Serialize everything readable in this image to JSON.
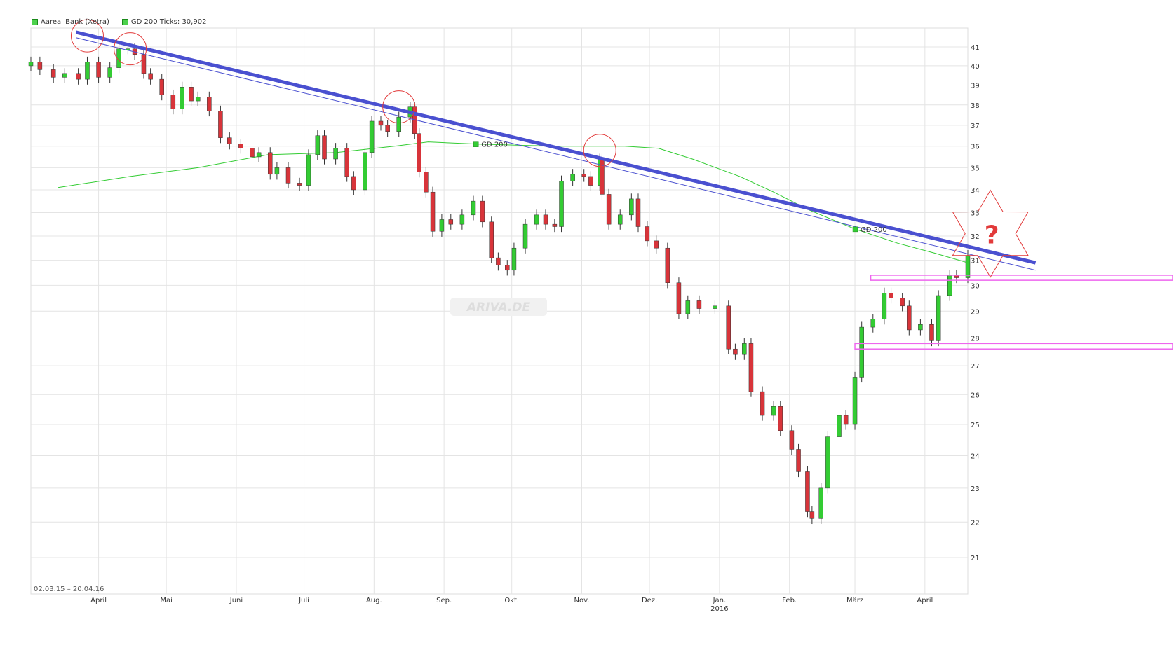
{
  "legend": {
    "instrument": "Aareal Bank (Xetra)",
    "indicator": "GD 200 Ticks: 30,902"
  },
  "date_range": "02.03.15 – 20.04.16",
  "watermark": "ARIVA.DE",
  "ma_labels": [
    "GD 200",
    "GD 200"
  ],
  "annotation_mark": "?",
  "colors": {
    "up": "#33cc33",
    "down": "#d8343a",
    "ma": "#33cc33",
    "trendline": "#4a50d0",
    "support": "#ee66ee",
    "circle": "#e23a3a",
    "star": "#e23a3a",
    "grid": "#e4e4e4"
  },
  "chart_data": {
    "type": "candlestick",
    "title": "",
    "x_axis": {
      "range": [
        "2015-03-02",
        "2016-04-20"
      ],
      "tick_labels": [
        {
          "date": "2015-04-01",
          "label": "April"
        },
        {
          "date": "2015-05-01",
          "label": "Mai"
        },
        {
          "date": "2015-06-01",
          "label": "Juni"
        },
        {
          "date": "2015-07-01",
          "label": "Juli"
        },
        {
          "date": "2015-08-01",
          "label": "Aug."
        },
        {
          "date": "2015-09-01",
          "label": "Sep."
        },
        {
          "date": "2015-10-01",
          "label": "Okt."
        },
        {
          "date": "2015-11-01",
          "label": "Nov."
        },
        {
          "date": "2015-12-01",
          "label": "Dez."
        },
        {
          "date": "2016-01-01",
          "label": "Jan.",
          "sublabel": "2016"
        },
        {
          "date": "2016-02-01",
          "label": "Feb."
        },
        {
          "date": "2016-03-01",
          "label": "März"
        },
        {
          "date": "2016-04-01",
          "label": "April"
        }
      ]
    },
    "y_axis": {
      "scale": "log",
      "range": [
        20,
        42
      ],
      "ticks": [
        21,
        22,
        23,
        24,
        25,
        26,
        27,
        28,
        29,
        30,
        31,
        32,
        33,
        34,
        35,
        36,
        37,
        38,
        39,
        40,
        41
      ],
      "side": "right",
      "grid": true
    },
    "series": [
      {
        "name": "Aareal Bank (Xetra)",
        "kind": "daily closing price (approx.)",
        "points": [
          [
            "2015-03-02",
            40.2
          ],
          [
            "2015-03-06",
            39.8
          ],
          [
            "2015-03-12",
            39.4
          ],
          [
            "2015-03-17",
            39.6
          ],
          [
            "2015-03-23",
            39.3
          ],
          [
            "2015-03-27",
            40.2
          ],
          [
            "2015-04-01",
            39.4
          ],
          [
            "2015-04-06",
            39.9
          ],
          [
            "2015-04-10",
            40.9
          ],
          [
            "2015-04-14",
            40.9
          ],
          [
            "2015-04-17",
            40.6
          ],
          [
            "2015-04-21",
            39.6
          ],
          [
            "2015-04-24",
            39.3
          ],
          [
            "2015-04-29",
            38.5
          ],
          [
            "2015-05-04",
            37.8
          ],
          [
            "2015-05-08",
            38.9
          ],
          [
            "2015-05-12",
            38.2
          ],
          [
            "2015-05-15",
            38.4
          ],
          [
            "2015-05-20",
            37.7
          ],
          [
            "2015-05-25",
            36.4
          ],
          [
            "2015-05-29",
            36.1
          ],
          [
            "2015-06-03",
            35.9
          ],
          [
            "2015-06-08",
            35.5
          ],
          [
            "2015-06-11",
            35.7
          ],
          [
            "2015-06-16",
            34.7
          ],
          [
            "2015-06-19",
            35.0
          ],
          [
            "2015-06-24",
            34.3
          ],
          [
            "2015-06-29",
            34.2
          ],
          [
            "2015-07-03",
            35.6
          ],
          [
            "2015-07-07",
            36.5
          ],
          [
            "2015-07-10",
            35.4
          ],
          [
            "2015-07-15",
            35.9
          ],
          [
            "2015-07-20",
            34.6
          ],
          [
            "2015-07-23",
            34.0
          ],
          [
            "2015-07-28",
            35.7
          ],
          [
            "2015-07-31",
            37.2
          ],
          [
            "2015-08-04",
            37.0
          ],
          [
            "2015-08-07",
            36.7
          ],
          [
            "2015-08-12",
            37.4
          ],
          [
            "2015-08-17",
            37.9
          ],
          [
            "2015-08-19",
            36.6
          ],
          [
            "2015-08-21",
            34.8
          ],
          [
            "2015-08-24",
            33.9
          ],
          [
            "2015-08-27",
            32.2
          ],
          [
            "2015-08-31",
            32.7
          ],
          [
            "2015-09-04",
            32.5
          ],
          [
            "2015-09-09",
            32.9
          ],
          [
            "2015-09-14",
            33.5
          ],
          [
            "2015-09-18",
            32.6
          ],
          [
            "2015-09-22",
            31.1
          ],
          [
            "2015-09-25",
            30.8
          ],
          [
            "2015-09-29",
            30.6
          ],
          [
            "2015-10-02",
            31.5
          ],
          [
            "2015-10-07",
            32.5
          ],
          [
            "2015-10-12",
            32.9
          ],
          [
            "2015-10-16",
            32.5
          ],
          [
            "2015-10-20",
            32.4
          ],
          [
            "2015-10-23",
            34.4
          ],
          [
            "2015-10-28",
            34.7
          ],
          [
            "2015-11-02",
            34.6
          ],
          [
            "2015-11-05",
            34.2
          ],
          [
            "2015-11-09",
            35.4
          ],
          [
            "2015-11-10",
            33.8
          ],
          [
            "2015-11-13",
            32.5
          ],
          [
            "2015-11-18",
            32.9
          ],
          [
            "2015-11-23",
            33.6
          ],
          [
            "2015-11-26",
            32.4
          ],
          [
            "2015-11-30",
            31.8
          ],
          [
            "2015-12-04",
            31.5
          ],
          [
            "2015-12-09",
            30.1
          ],
          [
            "2015-12-14",
            28.9
          ],
          [
            "2015-12-18",
            29.4
          ],
          [
            "2015-12-23",
            29.1
          ],
          [
            "2015-12-30",
            29.2
          ],
          [
            "2016-01-05",
            27.6
          ],
          [
            "2016-01-08",
            27.4
          ],
          [
            "2016-01-12",
            27.8
          ],
          [
            "2016-01-15",
            26.1
          ],
          [
            "2016-01-20",
            25.3
          ],
          [
            "2016-01-25",
            25.6
          ],
          [
            "2016-01-28",
            24.8
          ],
          [
            "2016-02-02",
            24.2
          ],
          [
            "2016-02-05",
            23.5
          ],
          [
            "2016-02-09",
            22.3
          ],
          [
            "2016-02-11",
            22.1
          ],
          [
            "2016-02-15",
            23.0
          ],
          [
            "2016-02-18",
            24.6
          ],
          [
            "2016-02-23",
            25.3
          ],
          [
            "2016-02-26",
            25.0
          ],
          [
            "2016-03-01",
            26.6
          ],
          [
            "2016-03-04",
            28.4
          ],
          [
            "2016-03-09",
            28.7
          ],
          [
            "2016-03-14",
            29.7
          ],
          [
            "2016-03-17",
            29.5
          ],
          [
            "2016-03-22",
            29.2
          ],
          [
            "2016-03-25",
            28.3
          ],
          [
            "2016-03-30",
            28.5
          ],
          [
            "2016-04-04",
            27.9
          ],
          [
            "2016-04-07",
            29.6
          ],
          [
            "2016-04-12",
            30.4
          ],
          [
            "2016-04-15",
            30.3
          ],
          [
            "2016-04-20",
            31.2
          ]
        ]
      },
      {
        "name": "GD 200",
        "kind": "200-day moving average",
        "points": [
          [
            "2015-03-14",
            34.1
          ],
          [
            "2015-04-15",
            34.6
          ],
          [
            "2015-05-15",
            35.0
          ],
          [
            "2015-06-15",
            35.6
          ],
          [
            "2015-07-15",
            35.7
          ],
          [
            "2015-08-10",
            36.0
          ],
          [
            "2015-08-25",
            36.2
          ],
          [
            "2015-09-15",
            36.1
          ],
          [
            "2015-10-20",
            36.0
          ],
          [
            "2015-11-20",
            36.0
          ],
          [
            "2015-12-05",
            35.9
          ],
          [
            "2015-12-20",
            35.4
          ],
          [
            "2016-01-10",
            34.6
          ],
          [
            "2016-01-25",
            33.9
          ],
          [
            "2016-02-10",
            33.1
          ],
          [
            "2016-03-01",
            32.3
          ],
          [
            "2016-03-20",
            31.7
          ],
          [
            "2016-04-05",
            31.3
          ],
          [
            "2016-04-20",
            30.9
          ]
        ]
      }
    ],
    "annotations": {
      "trendlines": [
        {
          "kind": "thick resistance line",
          "from": [
            "2015-03-22",
            41.8
          ],
          "to": [
            "2016-05-20",
            30.9
          ]
        },
        {
          "kind": "thin resistance line",
          "from": [
            "2015-03-22",
            41.5
          ],
          "to": [
            "2016-05-20",
            30.6
          ]
        }
      ],
      "support_zones": [
        {
          "from": "2016-03-08",
          "to": "2016-05-20",
          "low": 30.2,
          "high": 30.4
        },
        {
          "from": "2016-03-01",
          "to": "2016-05-20",
          "low": 27.6,
          "high": 27.8
        }
      ],
      "touch_points": [
        [
          "2015-03-27",
          41.6
        ],
        [
          "2015-04-15",
          40.9
        ],
        [
          "2015-08-12",
          37.9
        ],
        [
          "2015-11-09",
          35.8
        ]
      ],
      "question_star": [
        "2016-04-30",
        32.1
      ]
    }
  }
}
